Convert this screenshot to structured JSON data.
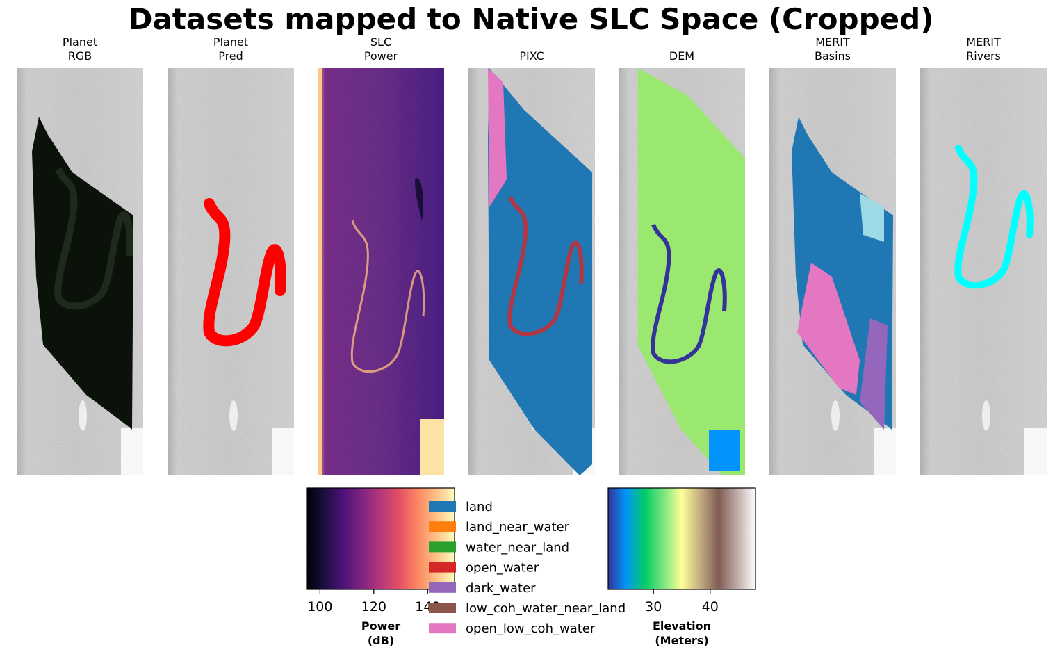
{
  "chart_data": {
    "type": "heatmap",
    "title": "Datasets mapped to Native SLC Space (Cropped)",
    "panels": [
      {
        "line1": "Planet",
        "line2": "RGB",
        "layer": "rgb",
        "color": "#0a120a"
      },
      {
        "line1": "Planet",
        "line2": "Pred",
        "layer": "pred",
        "color": "#ff0000"
      },
      {
        "line1": "SLC",
        "line2": "Power",
        "layer": "power",
        "color": "#6b2a8a"
      },
      {
        "line1": "",
        "line2": "PIXC",
        "layer": "pixc",
        "color": "#1f77b4"
      },
      {
        "line1": "",
        "line2": "DEM",
        "layer": "dem",
        "color": "#9be870"
      },
      {
        "line1": "MERIT",
        "line2": "Basins",
        "layer": "basins",
        "color": "#1f77b4"
      },
      {
        "line1": "MERIT",
        "line2": "Rivers",
        "layer": "rivers",
        "color": "#00ffff"
      }
    ],
    "power_colorbar": {
      "colormap": "magma",
      "ticks": [
        100,
        120,
        140
      ],
      "range": [
        95,
        150
      ],
      "label_line1": "Power",
      "label_line2": "(dB)"
    },
    "elevation_colorbar": {
      "colormap": "terrain",
      "ticks": [
        30,
        40
      ],
      "range": [
        22,
        48
      ],
      "label_line1": "Elevation",
      "label_line2": "(Meters)"
    },
    "legend": [
      {
        "label": "land",
        "color": "#1f77b4"
      },
      {
        "label": "land_near_water",
        "color": "#ff7f0e"
      },
      {
        "label": "water_near_land",
        "color": "#2ca02c"
      },
      {
        "label": "open_water",
        "color": "#d62728"
      },
      {
        "label": "dark_water",
        "color": "#9467bd"
      },
      {
        "label": "low_coh_water_near_land",
        "color": "#8c564b"
      },
      {
        "label": "open_low_coh_water",
        "color": "#e377c2"
      }
    ]
  }
}
